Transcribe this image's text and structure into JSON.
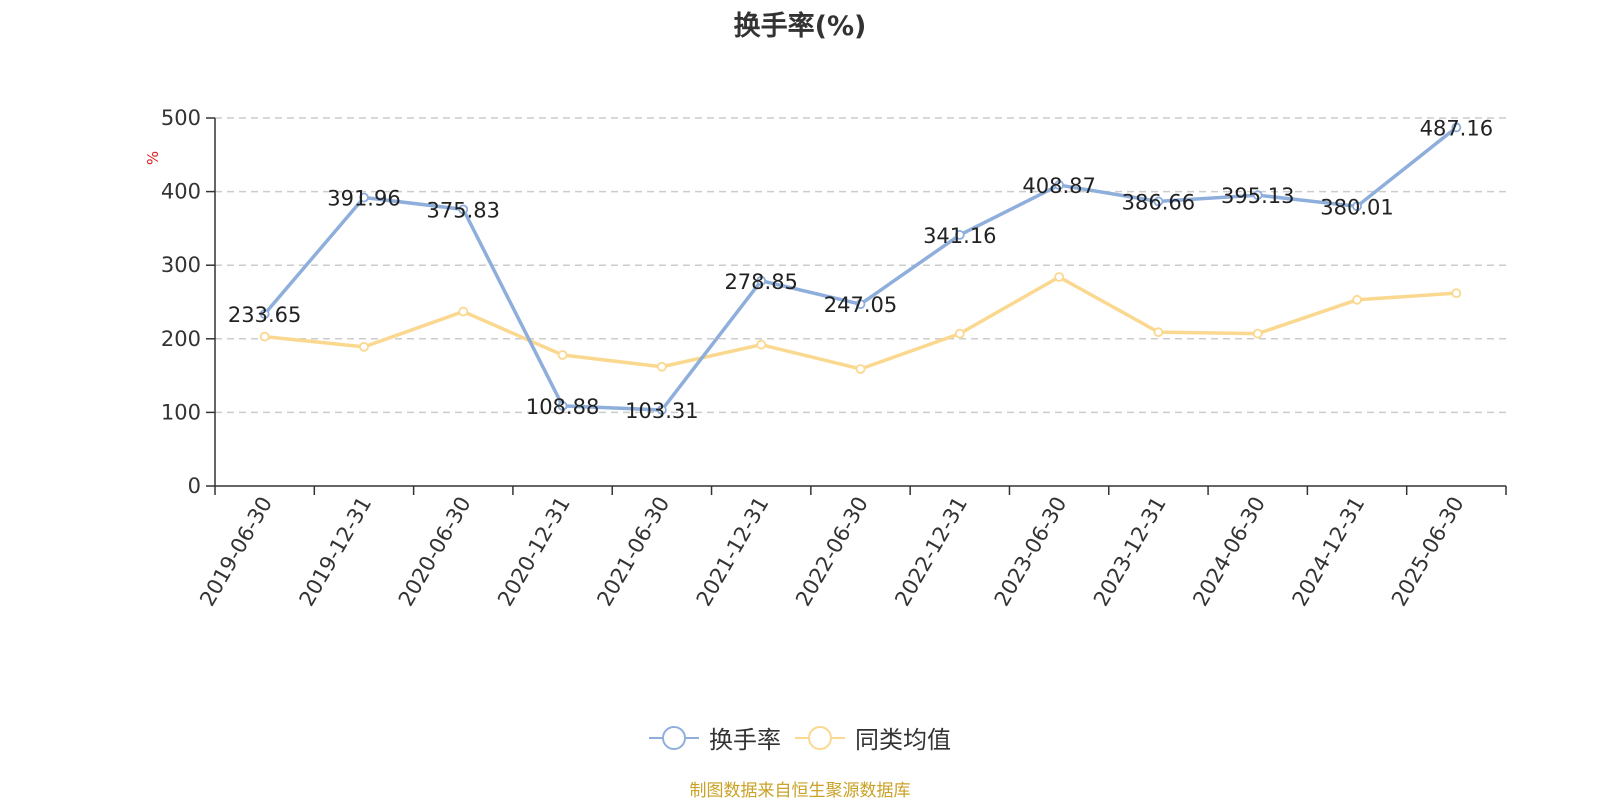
{
  "title": "换手率(%)",
  "source_note": "制图数据来自恒生聚源数据库",
  "chart_data": {
    "type": "line",
    "title": "换手率(%)",
    "ylabel": "%",
    "xlabel": "",
    "ylim": [
      0,
      500
    ],
    "yticks": [
      0,
      100,
      200,
      300,
      400,
      500
    ],
    "grid": true,
    "legend_position": "bottom",
    "categories": [
      "2019-06-30",
      "2019-12-31",
      "2020-06-30",
      "2020-12-31",
      "2021-06-30",
      "2021-12-31",
      "2022-06-30",
      "2022-12-31",
      "2023-06-30",
      "2023-12-31",
      "2024-06-30",
      "2024-12-31",
      "2025-06-30"
    ],
    "series": [
      {
        "name": "换手率",
        "color": "#8eaedb",
        "values": [
          233.65,
          391.96,
          375.83,
          108.88,
          103.31,
          278.85,
          247.05,
          341.16,
          408.87,
          386.66,
          395.13,
          380.01,
          487.16
        ],
        "labels": [
          "233.65",
          "391.96",
          "375.83",
          "108.88",
          "103.31",
          "278.85",
          "247.05",
          "341.16",
          "408.87",
          "386.66",
          "395.13",
          "380.01",
          "487.16"
        ]
      },
      {
        "name": "同类均值",
        "color": "#fbd890",
        "values": [
          203,
          189,
          237,
          178,
          162,
          192,
          159,
          207,
          284,
          209,
          207,
          253,
          262
        ]
      }
    ]
  }
}
